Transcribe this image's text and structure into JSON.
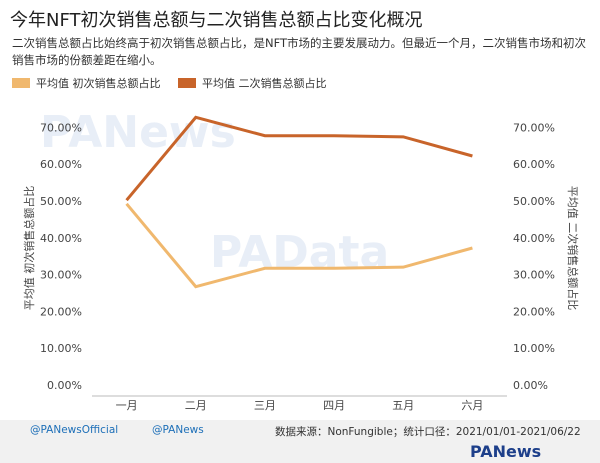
{
  "chart_data": {
    "type": "line",
    "title": "今年NFT初次销售总额与二次销售总额占比变化概况",
    "subtitle": "二次销售总额占比始终高于初次销售总额占比，是NFT市场的主要发展动力。但最近一个月，二次销售市场和初次销售市场的份额差距在缩小。",
    "categories": [
      "一月",
      "二月",
      "三月",
      "四月",
      "五月",
      "六月"
    ],
    "series": [
      {
        "name": "平均值 初次销售总额占比",
        "color": "#f0b86e",
        "values": [
          49.5,
          27.0,
          32.0,
          32.0,
          32.3,
          37.5
        ]
      },
      {
        "name": "平均值 二次销售总额占比",
        "color": "#c8642a",
        "values": [
          50.5,
          73.0,
          68.0,
          68.0,
          67.7,
          62.5
        ]
      }
    ],
    "ylabel": "平均值 初次销售总额占比",
    "y2label": "平均值 二次销售总额占比",
    "ylim": [
      0,
      75
    ],
    "yticks": [
      {
        "value": 0,
        "label": "0.00%"
      },
      {
        "value": 10,
        "label": "10.00%"
      },
      {
        "value": 20,
        "label": "20.00%"
      },
      {
        "value": 30,
        "label": "30.00%"
      },
      {
        "value": 40,
        "label": "40.00%"
      },
      {
        "value": 50,
        "label": "50.00%"
      },
      {
        "value": 60,
        "label": "60.00%"
      },
      {
        "value": 70,
        "label": "70.00%"
      }
    ],
    "y2lim": [
      0,
      75
    ],
    "y2ticks": [
      {
        "value": 0,
        "label": "0.00%"
      },
      {
        "value": 10,
        "label": "10.00%"
      },
      {
        "value": 20,
        "label": "20.00%"
      },
      {
        "value": 30,
        "label": "30.00%"
      },
      {
        "value": 40,
        "label": "40.00%"
      },
      {
        "value": 50,
        "label": "50.00%"
      },
      {
        "value": 60,
        "label": "60.00%"
      },
      {
        "value": 70,
        "label": "70.00%"
      }
    ],
    "grid": false,
    "watermarks": [
      "PANews",
      "PAData"
    ],
    "footer": {
      "twitter": "@PANewsOfficial",
      "weibo": "@PANews",
      "source": "数据来源：NonFungible；统计口径：2021/01/01-2021/06/22",
      "brand": "PANews"
    }
  }
}
